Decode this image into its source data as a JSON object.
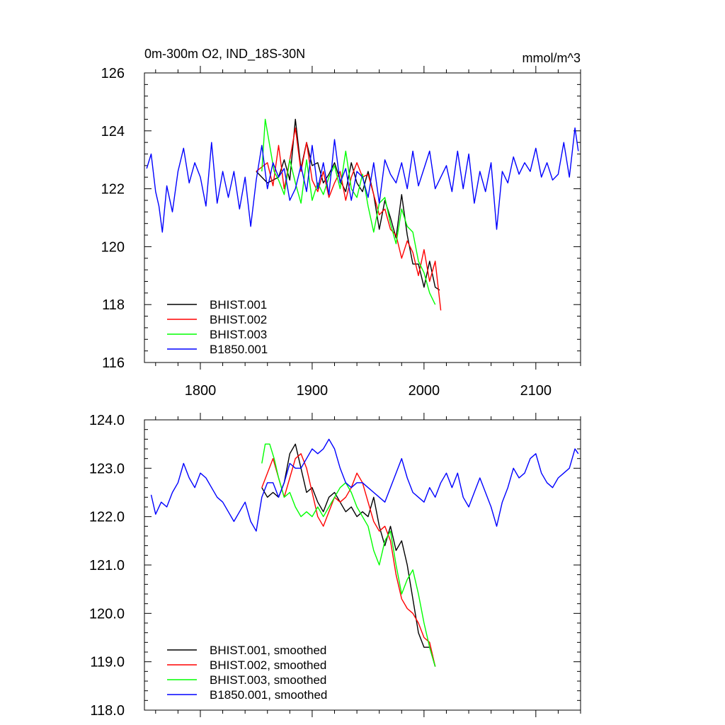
{
  "chart_data": [
    {
      "type": "line",
      "title_left": "0m-300m O2, IND_18S-30N",
      "title_right": "mmol/m^3",
      "xlabel": "",
      "ylabel": "",
      "xlim": [
        1750,
        2140
      ],
      "ylim": [
        116,
        126
      ],
      "xticks": [
        1800,
        1900,
        2000,
        2100
      ],
      "xtick_labels": [
        "1800",
        "1900",
        "2000",
        "2100"
      ],
      "yticks": [
        116,
        118,
        120,
        122,
        124,
        126
      ],
      "ytick_labels": [
        "116",
        "118",
        "120",
        "122",
        "124",
        "126"
      ],
      "legend_position": "bottom-left",
      "series": [
        {
          "name": "BHIST.001",
          "color": "#000000",
          "x": [
            1850,
            1860,
            1870,
            1875,
            1880,
            1885,
            1890,
            1895,
            1900,
            1905,
            1910,
            1915,
            1920,
            1925,
            1930,
            1935,
            1940,
            1945,
            1950,
            1955,
            1960,
            1965,
            1970,
            1975,
            1980,
            1985,
            1990,
            1995,
            2000,
            2005,
            2010,
            2014
          ],
          "values": [
            122.6,
            122.2,
            122.4,
            123.0,
            122.3,
            124.4,
            122.7,
            123.6,
            122.8,
            122.9,
            122.2,
            122.5,
            122.9,
            122.3,
            121.9,
            122.9,
            122.2,
            121.9,
            122.6,
            121.8,
            120.6,
            121.6,
            121.0,
            120.3,
            121.8,
            120.4,
            119.4,
            119.4,
            118.6,
            119.5,
            118.6,
            118.5
          ]
        },
        {
          "name": "BHIST.002",
          "color": "#ff0000",
          "x": [
            1850,
            1860,
            1865,
            1870,
            1875,
            1880,
            1885,
            1890,
            1895,
            1900,
            1905,
            1910,
            1915,
            1920,
            1925,
            1930,
            1935,
            1940,
            1945,
            1950,
            1955,
            1960,
            1965,
            1970,
            1975,
            1980,
            1985,
            1990,
            1995,
            2000,
            2005,
            2010,
            2015
          ],
          "values": [
            122.6,
            122.9,
            122.1,
            123.5,
            122.0,
            123.0,
            124.1,
            122.6,
            123.6,
            122.3,
            121.9,
            122.6,
            121.7,
            122.2,
            122.6,
            121.6,
            122.4,
            122.9,
            122.4,
            122.5,
            121.8,
            121.1,
            121.3,
            120.6,
            120.4,
            119.6,
            120.2,
            119.8,
            119.0,
            119.9,
            118.8,
            119.5,
            117.8
          ]
        },
        {
          "name": "BHIST.003",
          "color": "#00ff00",
          "x": [
            1855,
            1858,
            1862,
            1866,
            1870,
            1875,
            1880,
            1885,
            1890,
            1895,
            1900,
            1905,
            1910,
            1915,
            1920,
            1925,
            1930,
            1935,
            1940,
            1945,
            1950,
            1955,
            1960,
            1965,
            1970,
            1975,
            1980,
            1985,
            1990,
            1995,
            2000,
            2005,
            2010
          ],
          "values": [
            122.6,
            124.4,
            123.5,
            122.6,
            122.3,
            121.8,
            123.0,
            122.2,
            121.5,
            123.0,
            121.6,
            122.2,
            121.8,
            122.4,
            122.8,
            122.0,
            123.3,
            122.0,
            121.7,
            122.5,
            121.4,
            120.5,
            121.5,
            121.7,
            120.8,
            120.1,
            121.3,
            120.7,
            120.5,
            119.5,
            119.1,
            118.4,
            118.0
          ]
        },
        {
          "name": "B1850.001",
          "color": "#0000ff",
          "x": [
            1752,
            1756,
            1760,
            1763,
            1766,
            1770,
            1775,
            1780,
            1785,
            1790,
            1795,
            1800,
            1805,
            1810,
            1815,
            1820,
            1825,
            1830,
            1835,
            1840,
            1845,
            1850,
            1855,
            1860,
            1865,
            1870,
            1875,
            1880,
            1885,
            1890,
            1895,
            1900,
            1905,
            1910,
            1915,
            1920,
            1925,
            1930,
            1935,
            1940,
            1945,
            1950,
            1955,
            1960,
            1965,
            1970,
            1975,
            1980,
            1985,
            1990,
            1995,
            2000,
            2005,
            2010,
            2015,
            2020,
            2025,
            2030,
            2035,
            2040,
            2045,
            2050,
            2055,
            2060,
            2065,
            2070,
            2075,
            2080,
            2085,
            2090,
            2095,
            2100,
            2105,
            2110,
            2115,
            2120,
            2125,
            2130,
            2135,
            2138
          ],
          "values": [
            122.7,
            123.2,
            121.9,
            121.4,
            120.5,
            122.1,
            121.2,
            122.6,
            123.4,
            122.2,
            122.9,
            122.4,
            121.4,
            123.6,
            121.5,
            122.6,
            121.7,
            122.6,
            121.3,
            122.4,
            120.7,
            122.3,
            123.5,
            122.0,
            122.9,
            122.4,
            122.7,
            121.6,
            122.0,
            122.8,
            121.9,
            123.5,
            122.0,
            122.9,
            121.8,
            123.7,
            122.2,
            122.7,
            121.6,
            122.6,
            122.4,
            121.7,
            122.9,
            121.5,
            123.0,
            122.5,
            122.2,
            122.9,
            122.0,
            123.3,
            122.1,
            122.7,
            123.3,
            122.0,
            122.4,
            122.8,
            121.9,
            123.3,
            122.0,
            123.2,
            121.5,
            122.6,
            121.9,
            122.9,
            120.6,
            122.6,
            122.2,
            123.1,
            122.5,
            122.9,
            122.6,
            123.4,
            122.4,
            122.9,
            122.3,
            122.5,
            123.6,
            122.4,
            124.1,
            123.3
          ]
        }
      ]
    },
    {
      "type": "line",
      "title_left": "",
      "title_right": "",
      "xlabel": "",
      "ylabel": "",
      "xlim": [
        1750,
        2140
      ],
      "ylim": [
        118.0,
        124.0
      ],
      "xticks": [
        1800,
        1900,
        2000,
        2100
      ],
      "xtick_labels": [
        "",
        "",
        "",
        ""
      ],
      "yticks": [
        118.0,
        119.0,
        120.0,
        121.0,
        122.0,
        123.0,
        124.0
      ],
      "ytick_labels": [
        "118.0",
        "119.0",
        "120.0",
        "121.0",
        "122.0",
        "123.0",
        "124.0"
      ],
      "legend_position": "bottom-left",
      "series": [
        {
          "name": "BHIST.001, smoothed",
          "color": "#000000",
          "x": [
            1855,
            1860,
            1865,
            1870,
            1875,
            1880,
            1885,
            1890,
            1895,
            1900,
            1905,
            1910,
            1915,
            1920,
            1925,
            1930,
            1935,
            1940,
            1945,
            1950,
            1955,
            1960,
            1965,
            1970,
            1975,
            1980,
            1985,
            1990,
            1995,
            2000,
            2005,
            2010
          ],
          "values": [
            122.6,
            122.4,
            122.5,
            122.4,
            122.7,
            123.3,
            123.5,
            123.0,
            122.5,
            122.6,
            122.3,
            122.1,
            122.4,
            122.5,
            122.3,
            122.1,
            122.2,
            122.0,
            122.1,
            122.0,
            122.4,
            121.8,
            121.4,
            121.8,
            121.3,
            121.5,
            121.0,
            120.3,
            119.6,
            119.3,
            119.3,
            118.9
          ]
        },
        {
          "name": "BHIST.002, smoothed",
          "color": "#ff0000",
          "x": [
            1855,
            1860,
            1865,
            1870,
            1875,
            1880,
            1885,
            1890,
            1895,
            1900,
            1905,
            1910,
            1915,
            1920,
            1925,
            1930,
            1935,
            1940,
            1945,
            1950,
            1955,
            1960,
            1965,
            1970,
            1975,
            1980,
            1985,
            1990,
            1995,
            2000,
            2005,
            2010
          ],
          "values": [
            122.6,
            122.9,
            123.2,
            122.8,
            122.4,
            122.8,
            123.2,
            123.3,
            123.0,
            122.5,
            122.0,
            121.8,
            122.1,
            122.4,
            122.3,
            122.4,
            122.6,
            122.9,
            122.7,
            122.3,
            121.9,
            121.7,
            121.8,
            121.5,
            120.8,
            120.3,
            120.1,
            120.0,
            119.8,
            119.5,
            119.4,
            118.9
          ]
        },
        {
          "name": "BHIST.003, smoothed",
          "color": "#00ff00",
          "x": [
            1855,
            1858,
            1862,
            1866,
            1870,
            1875,
            1880,
            1885,
            1890,
            1895,
            1900,
            1905,
            1910,
            1915,
            1920,
            1925,
            1930,
            1935,
            1940,
            1945,
            1950,
            1955,
            1960,
            1965,
            1970,
            1975,
            1980,
            1985,
            1990,
            1995,
            2000,
            2005,
            2010
          ],
          "values": [
            123.1,
            123.5,
            123.5,
            123.2,
            122.8,
            122.4,
            122.5,
            122.2,
            122.0,
            122.1,
            122.0,
            122.2,
            122.0,
            122.2,
            122.4,
            122.6,
            122.7,
            122.5,
            122.2,
            122.0,
            121.8,
            121.3,
            121.0,
            121.5,
            121.7,
            121.0,
            120.4,
            120.7,
            120.9,
            120.4,
            119.8,
            119.3,
            118.9
          ]
        },
        {
          "name": "B1850.001, smoothed",
          "color": "#0000ff",
          "x": [
            1756,
            1760,
            1765,
            1770,
            1775,
            1780,
            1785,
            1790,
            1795,
            1800,
            1805,
            1810,
            1815,
            1820,
            1825,
            1830,
            1835,
            1840,
            1845,
            1850,
            1855,
            1860,
            1865,
            1870,
            1875,
            1880,
            1885,
            1890,
            1895,
            1900,
            1905,
            1910,
            1915,
            1920,
            1925,
            1930,
            1935,
            1940,
            1945,
            1950,
            1955,
            1960,
            1965,
            1970,
            1975,
            1980,
            1985,
            1990,
            1995,
            2000,
            2005,
            2010,
            2015,
            2020,
            2025,
            2030,
            2035,
            2040,
            2045,
            2050,
            2055,
            2060,
            2065,
            2070,
            2075,
            2080,
            2085,
            2090,
            2095,
            2100,
            2105,
            2110,
            2115,
            2120,
            2125,
            2130,
            2135,
            2138
          ],
          "values": [
            122.45,
            122.05,
            122.3,
            122.2,
            122.5,
            122.7,
            123.1,
            122.8,
            122.6,
            122.9,
            122.8,
            122.6,
            122.4,
            122.3,
            122.1,
            121.9,
            122.1,
            122.3,
            121.9,
            121.7,
            122.4,
            122.7,
            122.7,
            122.4,
            122.7,
            123.1,
            123.0,
            123.0,
            123.2,
            123.4,
            123.3,
            123.4,
            123.6,
            123.4,
            123.0,
            122.7,
            122.6,
            122.7,
            122.7,
            122.6,
            122.5,
            122.4,
            122.3,
            122.6,
            122.9,
            123.2,
            122.8,
            122.5,
            122.4,
            122.3,
            122.6,
            122.4,
            122.7,
            122.9,
            122.6,
            122.9,
            122.4,
            122.2,
            122.5,
            122.8,
            122.5,
            122.2,
            121.8,
            122.3,
            122.6,
            123.0,
            122.8,
            122.9,
            123.2,
            123.3,
            122.9,
            122.7,
            122.6,
            122.8,
            122.9,
            123.0,
            123.4,
            123.3
          ]
        }
      ]
    }
  ]
}
